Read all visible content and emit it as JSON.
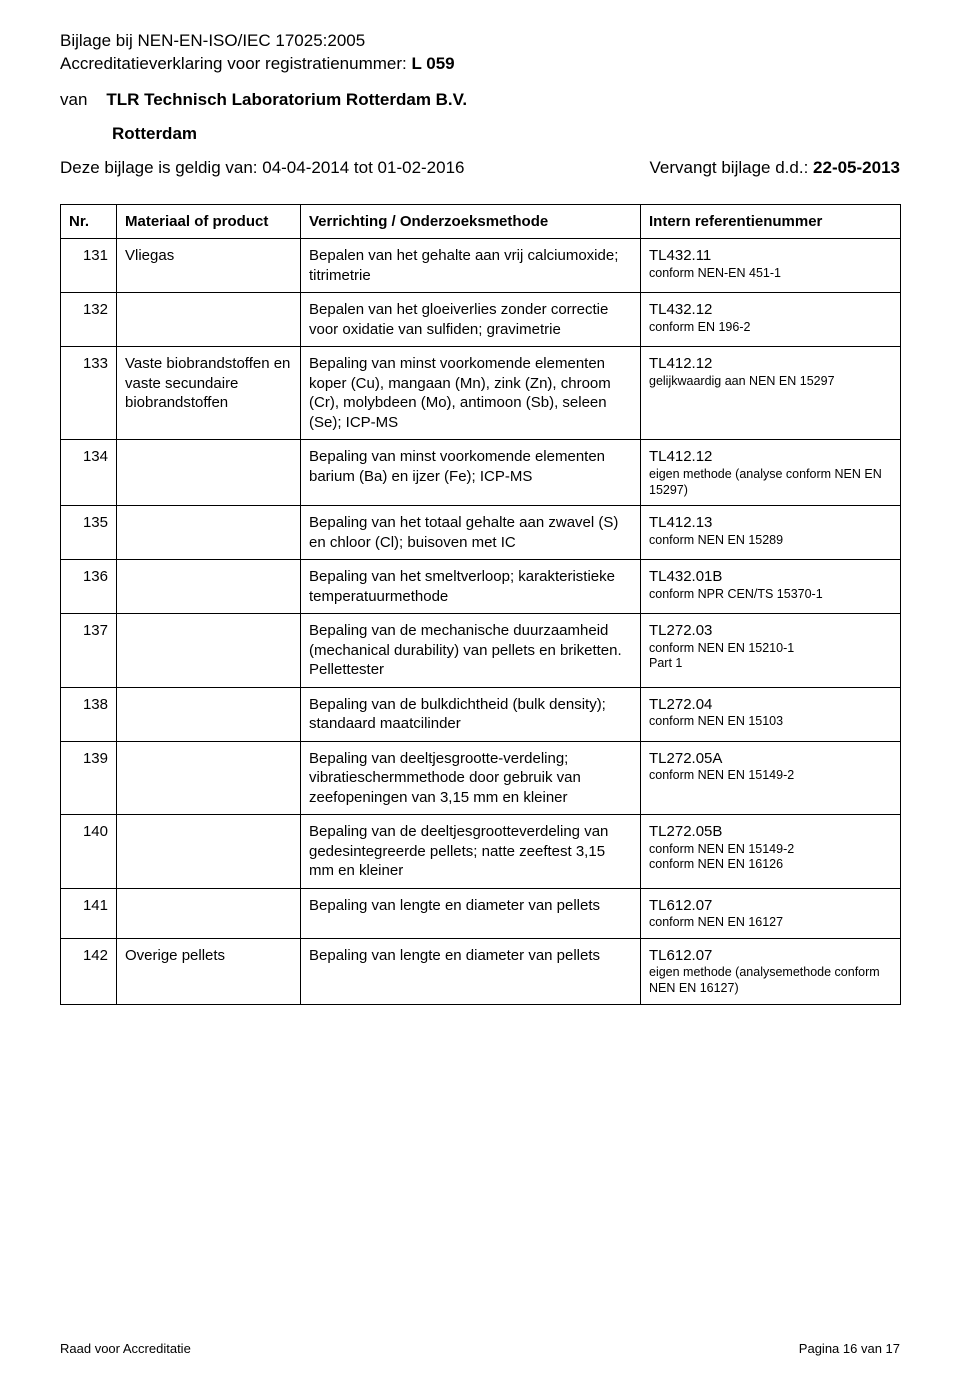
{
  "header": {
    "line1": "Bijlage bij NEN-EN-ISO/IEC 17025:2005",
    "line2_prefix": "Accreditatieverklaring voor registratienummer: ",
    "line2_bold": "L 059",
    "van": "van",
    "org": "TLR Technisch Laboratorium Rotterdam B.V.",
    "city": "Rotterdam",
    "validity_prefix": "Deze bijlage is geldig van: ",
    "validity_range": "04-04-2014 tot 01-02-2016",
    "supersedes_prefix": "Vervangt bijlage d.d.: ",
    "supersedes_date": "22-05-2013"
  },
  "columns": {
    "nr": "Nr.",
    "material": "Materiaal of product",
    "method": "Verrichting / Onderzoeksmethode",
    "ref": "Intern referentienummer"
  },
  "rows": [
    {
      "nr": "131",
      "material": "Vliegas",
      "method": "Bepalen van het gehalte aan vrij calciumoxide; titrimetrie",
      "ref_code": "TL432.11",
      "ref_notes": [
        "conform NEN-EN 451-1"
      ]
    },
    {
      "nr": "132",
      "material": "",
      "method": "Bepalen van het gloeiverlies zonder correctie voor oxidatie van sulfiden; gravimetrie",
      "ref_code": "TL432.12",
      "ref_notes": [
        "conform EN 196-2"
      ]
    },
    {
      "nr": "133",
      "material": "Vaste biobrandstoffen en vaste secundaire biobrandstoffen",
      "method": "Bepaling van minst voorkomende elementen koper (Cu), mangaan (Mn), zink (Zn), chroom (Cr), molybdeen (Mo), antimoon (Sb), seleen (Se); ICP-MS",
      "ref_code": "TL412.12",
      "ref_notes": [
        "gelijkwaardig aan NEN EN 15297"
      ]
    },
    {
      "nr": "134",
      "material": "",
      "method": "Bepaling van minst voorkomende elementen barium (Ba) en ijzer (Fe); ICP-MS",
      "ref_code": "TL412.12",
      "ref_notes": [
        "eigen methode (analyse conform NEN EN 15297)"
      ]
    },
    {
      "nr": "135",
      "material": "",
      "method": "Bepaling van het totaal gehalte aan zwavel (S) en chloor (Cl); buisoven met IC",
      "ref_code": "TL412.13",
      "ref_notes": [
        "conform NEN EN 15289"
      ]
    },
    {
      "nr": "136",
      "material": "",
      "method": "Bepaling van het smeltverloop; karakteristieke temperatuurmethode",
      "ref_code": "TL432.01B",
      "ref_notes": [
        "conform NPR CEN/TS 15370-1"
      ]
    },
    {
      "nr": "137",
      "material": "",
      "method": "Bepaling van de mechanische duurzaamheid (mechanical durability) van pellets en briketten. Pellettester",
      "ref_code": "TL272.03",
      "ref_notes": [
        "conform NEN EN 15210-1",
        "Part 1"
      ]
    },
    {
      "nr": "138",
      "material": "",
      "method": "Bepaling van de bulkdichtheid (bulk density); standaard maatcilinder",
      "ref_code": "TL272.04",
      "ref_notes": [
        "conform NEN EN 15103"
      ]
    },
    {
      "nr": "139",
      "material": "",
      "method": "Bepaling van deeltjesgrootte-verdeling; vibratieschermmethode door gebruik van zeefopeningen van 3,15 mm en kleiner",
      "ref_code": "TL272.05A",
      "ref_notes": [
        "conform NEN EN 15149-2"
      ]
    },
    {
      "nr": "140",
      "material": "",
      "method": "Bepaling van de deeltjesgrootteverdeling van gedesintegreerde pellets; natte zeeftest 3,15 mm en kleiner",
      "ref_code": "TL272.05B",
      "ref_notes": [
        "conform NEN EN 15149-2",
        "conform NEN EN 16126"
      ]
    },
    {
      "nr": "141",
      "material": "",
      "method": "Bepaling van lengte en diameter van pellets",
      "ref_code": "TL612.07",
      "ref_notes": [
        "conform NEN EN 16127"
      ]
    },
    {
      "nr": "142",
      "material": "Overige pellets",
      "method": "Bepaling van lengte en diameter van pellets",
      "ref_code": "TL612.07",
      "ref_notes": [
        "eigen methode (analysemethode conform NEN EN 16127)"
      ]
    }
  ],
  "footer": {
    "left": "Raad voor Accreditatie",
    "right": "Pagina 16 van 17"
  }
}
